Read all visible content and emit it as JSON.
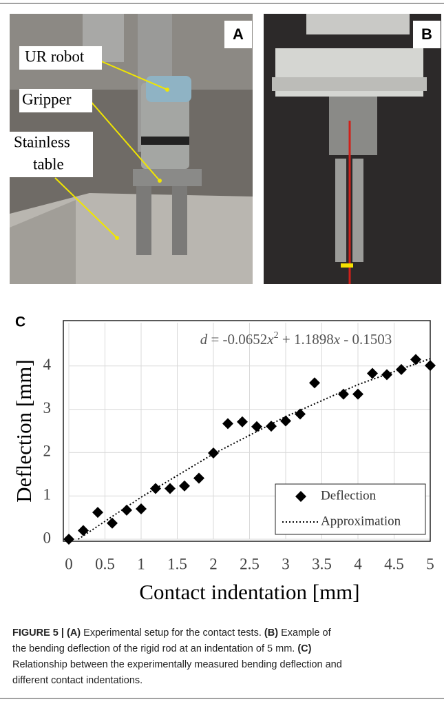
{
  "panels": {
    "a": {
      "label": "A",
      "annotations": [
        [
          "UR robot"
        ],
        [
          "Gripper"
        ],
        [
          "Stainless",
          "table"
        ]
      ]
    },
    "b": {
      "label": "B"
    }
  },
  "chart_data": {
    "type": "scatter",
    "panel_label": "C",
    "equation": [
      {
        "text": "d",
        "italic": true
      },
      {
        "text": " = -0.0652"
      },
      {
        "text": "x",
        "italic": true
      },
      {
        "text": "2",
        "sup": true
      },
      {
        "text": " + 1.1898"
      },
      {
        "text": "x",
        "italic": true
      },
      {
        "text": " - 0.1503"
      }
    ],
    "x_label": "Contact indentation [mm]",
    "y_label": "Deflection [mm]",
    "x": [
      0,
      0.2,
      0.4,
      0.6,
      0.8,
      1.0,
      1.2,
      1.4,
      1.6,
      1.8,
      2.0,
      2.2,
      2.4,
      2.6,
      2.8,
      3.0,
      3.2,
      3.4,
      3.8,
      4.0,
      4.2,
      4.4,
      4.6,
      4.8,
      5.0
    ],
    "series": [
      {
        "name": "Deflection",
        "color": "#000000",
        "marker": "diamond",
        "values": [
          0,
          0.2,
          0.62,
          0.37,
          0.67,
          0.7,
          1.17,
          1.17,
          1.23,
          1.41,
          1.99,
          2.67,
          2.71,
          2.6,
          2.61,
          2.73,
          2.89,
          3.61,
          3.35,
          3.35,
          3.83,
          3.8,
          3.92,
          4.15,
          4.01
        ]
      },
      {
        "name": "Approximation",
        "color": "#000000",
        "style": "dotted",
        "x": [
          0.13,
          1,
          2,
          3,
          4,
          5
        ],
        "values": [
          0,
          0.97,
          1.97,
          2.83,
          3.57,
          4.17
        ]
      }
    ],
    "xlim": [
      0,
      5
    ],
    "ylim": [
      0,
      5
    ],
    "xticks": [
      0,
      0.5,
      1,
      1.5,
      2,
      2.5,
      3,
      3.5,
      4,
      4.5,
      5
    ],
    "yticks": [
      0,
      1,
      2,
      3,
      4
    ],
    "grid": true,
    "legend": "lower-right"
  },
  "caption": {
    "lines": [
      [
        {
          "text": "FIGURE 5 | (A)",
          "bold": true
        },
        {
          "text": " Experimental setup for the contact tests. "
        },
        {
          "text": "(B)",
          "bold": true
        },
        {
          "text": " Example of"
        }
      ],
      [
        {
          "text": "the bending deflection of the rigid rod at an indentation of 5 mm. "
        },
        {
          "text": "(C)",
          "bold": true
        }
      ],
      [
        {
          "text": "Relationship between the experimentally measured bending deflection and"
        }
      ],
      [
        {
          "text": "different contact indentations."
        }
      ]
    ]
  }
}
